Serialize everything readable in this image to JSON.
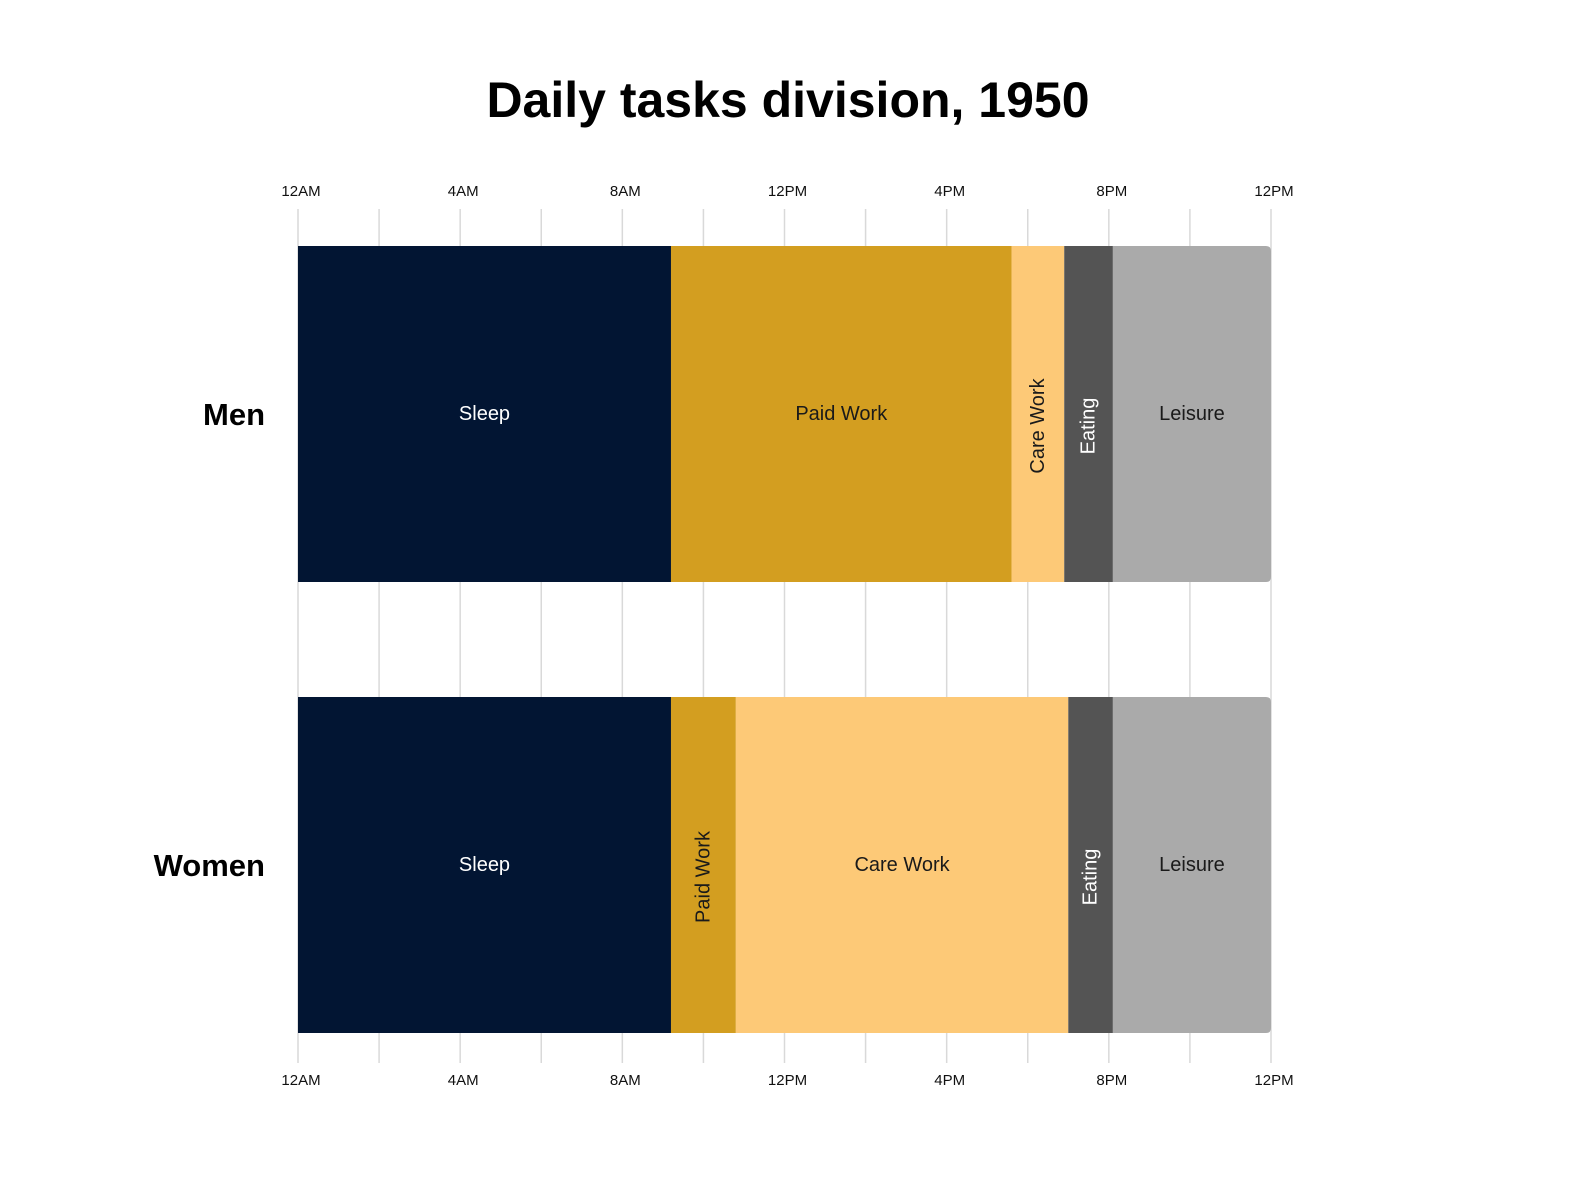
{
  "chart_data": {
    "type": "bar",
    "orientation": "horizontal-stacked",
    "title": "Daily tasks division, 1950",
    "xlabel": "",
    "ylabel": "",
    "x_unit": "hours",
    "xlim": [
      0,
      24
    ],
    "x_ticks": [
      {
        "value": 0,
        "label": "12AM"
      },
      {
        "value": 4,
        "label": "4AM"
      },
      {
        "value": 8,
        "label": "8AM"
      },
      {
        "value": 12,
        "label": "12PM"
      },
      {
        "value": 16,
        "label": "4PM"
      },
      {
        "value": 20,
        "label": "8PM"
      },
      {
        "value": 24,
        "label": "12PM"
      }
    ],
    "grid_step_hours": 2,
    "grid": true,
    "axis_position": "top-and-bottom",
    "rows": [
      {
        "name": "Men",
        "segments": [
          {
            "label": "Sleep",
            "start": 0,
            "end": 9.2,
            "color": "#021533",
            "text_color": "#ffffff",
            "vertical_label": false
          },
          {
            "label": "Paid Work",
            "start": 9.2,
            "end": 17.6,
            "color": "#d39e20",
            "text_color": "#1a1a1a",
            "vertical_label": false
          },
          {
            "label": "Care Work",
            "start": 17.6,
            "end": 18.9,
            "color": "#fdc977",
            "text_color": "#1a1a1a",
            "vertical_label": true
          },
          {
            "label": "Eating",
            "start": 18.9,
            "end": 20.1,
            "color": "#545454",
            "text_color": "#ffffff",
            "vertical_label": true
          },
          {
            "label": "Leisure",
            "start": 20.1,
            "end": 24,
            "color": "#aaaaaa",
            "text_color": "#1a1a1a",
            "vertical_label": false
          }
        ]
      },
      {
        "name": "Women",
        "segments": [
          {
            "label": "Sleep",
            "start": 0,
            "end": 9.2,
            "color": "#021533",
            "text_color": "#ffffff",
            "vertical_label": false
          },
          {
            "label": "Paid Work",
            "start": 9.2,
            "end": 10.8,
            "color": "#d39e20",
            "text_color": "#1a1a1a",
            "vertical_label": true
          },
          {
            "label": "Care Work",
            "start": 10.8,
            "end": 19.0,
            "color": "#fdc977",
            "text_color": "#1a1a1a",
            "vertical_label": false
          },
          {
            "label": "Eating",
            "start": 19.0,
            "end": 20.1,
            "color": "#545454",
            "text_color": "#ffffff",
            "vertical_label": true
          },
          {
            "label": "Leisure",
            "start": 20.1,
            "end": 24,
            "color": "#aaaaaa",
            "text_color": "#1a1a1a",
            "vertical_label": false
          }
        ]
      }
    ]
  }
}
